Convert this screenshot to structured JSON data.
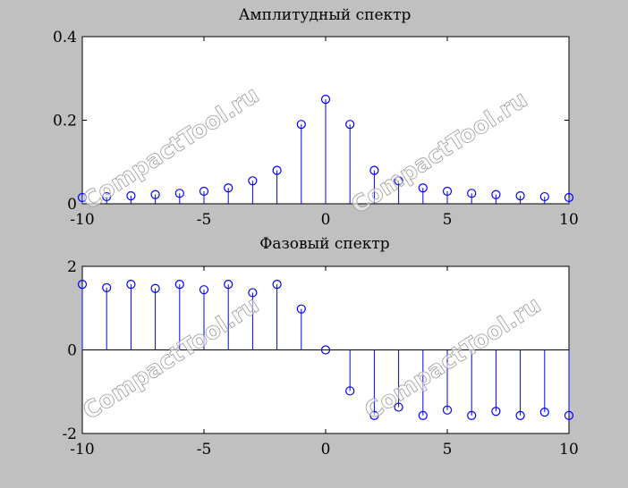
{
  "colors": {
    "background": "#c0c0c0",
    "plot_bg": "#ffffff",
    "stem": "#0000ff",
    "axes": "#000000"
  },
  "watermark": "CompactTool.ru",
  "chart_data": [
    {
      "type": "stem",
      "title": "Амплитудный спектр",
      "x": [
        -10,
        -9,
        -8,
        -7,
        -6,
        -5,
        -4,
        -3,
        -2,
        -1,
        0,
        1,
        2,
        3,
        4,
        5,
        6,
        7,
        8,
        9,
        10
      ],
      "values": [
        0.015,
        0.017,
        0.019,
        0.022,
        0.025,
        0.03,
        0.038,
        0.055,
        0.08,
        0.19,
        0.25,
        0.19,
        0.08,
        0.055,
        0.038,
        0.03,
        0.025,
        0.022,
        0.019,
        0.017,
        0.015
      ],
      "xlim": [
        -10,
        10
      ],
      "ylim": [
        0,
        0.4
      ],
      "xticks": [
        -10,
        -5,
        0,
        5,
        10
      ],
      "xtick_labels": [
        "-10",
        "-5",
        "0",
        "5",
        "10"
      ],
      "yticks": [
        0,
        0.2,
        0.4
      ],
      "ytick_labels": [
        "0",
        "0.2",
        "0.4"
      ],
      "grid": false,
      "marker": "open-circle"
    },
    {
      "type": "stem",
      "title": "Фазовый спектр",
      "x": [
        -10,
        -9,
        -8,
        -7,
        -6,
        -5,
        -4,
        -3,
        -2,
        -1,
        0,
        1,
        2,
        3,
        4,
        5,
        6,
        7,
        8,
        9,
        10
      ],
      "values": [
        1.57,
        1.49,
        1.57,
        1.47,
        1.57,
        1.44,
        1.57,
        1.37,
        1.57,
        0.98,
        0,
        -0.98,
        -1.57,
        -1.37,
        -1.57,
        -1.44,
        -1.57,
        -1.47,
        -1.57,
        -1.49,
        -1.57
      ],
      "xlim": [
        -10,
        10
      ],
      "ylim": [
        -2,
        2
      ],
      "xticks": [
        -10,
        -5,
        0,
        5,
        10
      ],
      "xtick_labels": [
        "-10",
        "-5",
        "0",
        "5",
        "10"
      ],
      "yticks": [
        -2,
        0,
        2
      ],
      "ytick_labels": [
        "-2",
        "0",
        "2"
      ],
      "grid": false,
      "marker": "open-circle"
    }
  ]
}
